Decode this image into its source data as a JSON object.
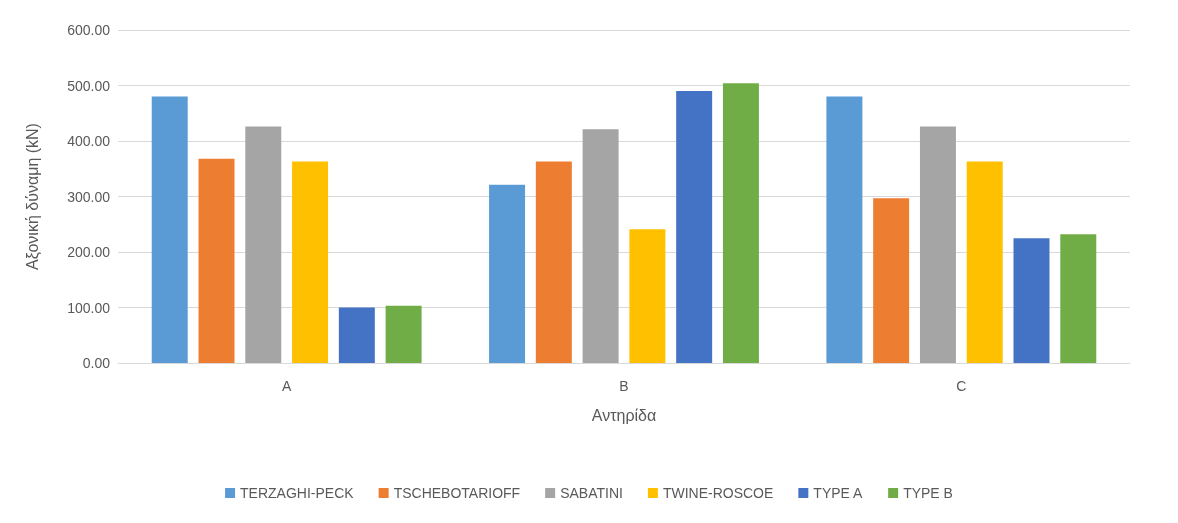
{
  "chart_data": {
    "type": "bar",
    "xlabel": "Αντηρίδα",
    "ylabel": "Αξονική δύναμη (kN)",
    "categories": [
      "A",
      "B",
      "C"
    ],
    "series": [
      {
        "name": "TERZAGHI-PECK",
        "color": "#5b9bd5",
        "values": [
          480,
          321,
          480
        ]
      },
      {
        "name": "TSCHEBOTARIOFF",
        "color": "#ed7d31",
        "values": [
          368,
          363,
          297
        ]
      },
      {
        "name": "SABATINI",
        "color": "#a5a5a5",
        "values": [
          426,
          421,
          426
        ]
      },
      {
        "name": "TWINE-ROSCOE",
        "color": "#ffc000",
        "values": [
          363,
          241,
          363
        ]
      },
      {
        "name": "TYPE A",
        "color": "#4472c4",
        "values": [
          100,
          490,
          225
        ]
      },
      {
        "name": "TYPE B",
        "color": "#70ad47",
        "values": [
          103,
          504,
          232
        ]
      }
    ],
    "ylim": [
      0,
      600
    ],
    "yticks": [
      {
        "value": 0,
        "label": "0.00"
      },
      {
        "value": 100,
        "label": "100.00"
      },
      {
        "value": 200,
        "label": "200.00"
      },
      {
        "value": 300,
        "label": "300.00"
      },
      {
        "value": 400,
        "label": "400.00"
      },
      {
        "value": 500,
        "label": "500.00"
      },
      {
        "value": 600,
        "label": "600.00"
      }
    ],
    "grid": "y",
    "legend": "bottom"
  }
}
